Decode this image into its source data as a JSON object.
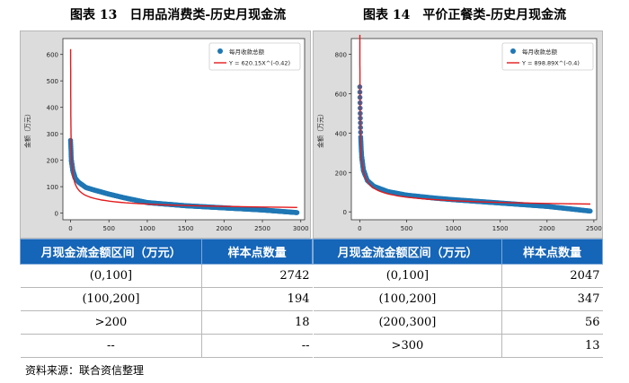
{
  "titles": {
    "left": "图表 13　日用品消费类-历史月现金流",
    "right": "图表 14　平价正餐类-历史月现金流"
  },
  "colors": {
    "scatter": "#1f77b4",
    "fit": "#e41a1c",
    "header": "#1565b8"
  },
  "chart_data": [
    {
      "type": "scatter",
      "ylabel": "金额（万元）",
      "xlim": [
        -100,
        3050
      ],
      "ylim": [
        -25,
        660
      ],
      "xticks": [
        0,
        500,
        1000,
        1500,
        2000,
        2500,
        3000
      ],
      "yticks": [
        0,
        100,
        200,
        300,
        400,
        500,
        600
      ],
      "legend_position": "top-right",
      "series": [
        {
          "name": "每月收款总额",
          "kind": "scatter",
          "n_points": 2954,
          "max": 275,
          "min": 2,
          "profile_x": [
            0,
            10,
            30,
            60,
            100,
            200,
            300,
            500,
            700,
            1000,
            1500,
            2000,
            2500,
            2954
          ],
          "profile_y": [
            275,
            200,
            160,
            132,
            118,
            97,
            88,
            72,
            58,
            40,
            28,
            20,
            12,
            2
          ]
        },
        {
          "name": "Y = 620.15X^(-0.42)",
          "kind": "line",
          "coef": 620.15,
          "exp": -0.42
        }
      ]
    },
    {
      "type": "scatter",
      "ylabel": "金额（万元）",
      "xlim": [
        -90,
        2530
      ],
      "ylim": [
        -40,
        880
      ],
      "xticks": [
        0,
        500,
        1000,
        1500,
        2000,
        2500
      ],
      "yticks": [
        0,
        200,
        400,
        600,
        800
      ],
      "legend_position": "top-right",
      "series": [
        {
          "name": "每月收款总额",
          "kind": "scatter",
          "n_points": 2463,
          "max": 635,
          "min": 4,
          "profile_x": [
            0,
            5,
            10,
            20,
            40,
            80,
            150,
            300,
            500,
            800,
            1000,
            1500,
            2000,
            2463
          ],
          "profile_y": [
            635,
            500,
            380,
            280,
            210,
            160,
            130,
            103,
            85,
            70,
            62,
            45,
            28,
            4
          ]
        },
        {
          "name": "Y = 898.89X^(-0.4)",
          "kind": "line",
          "coef": 898.89,
          "exp": -0.4
        }
      ]
    }
  ],
  "tables": {
    "left": {
      "headers": [
        "月现金流金额区间（万元）",
        "样本点数量"
      ],
      "rows": [
        [
          "(0,100]",
          "2742"
        ],
        [
          "(100,200]",
          "194"
        ],
        [
          ">200",
          "18"
        ],
        [
          "--",
          "--"
        ]
      ]
    },
    "right": {
      "headers": [
        "月现金流金额区间（万元）",
        "样本点数量"
      ],
      "rows": [
        [
          "(0,100]",
          "2047"
        ],
        [
          "(100,200]",
          "347"
        ],
        [
          "(200,300]",
          "56"
        ],
        [
          ">300",
          "13"
        ]
      ]
    }
  },
  "source": "资料来源：联合资信整理"
}
